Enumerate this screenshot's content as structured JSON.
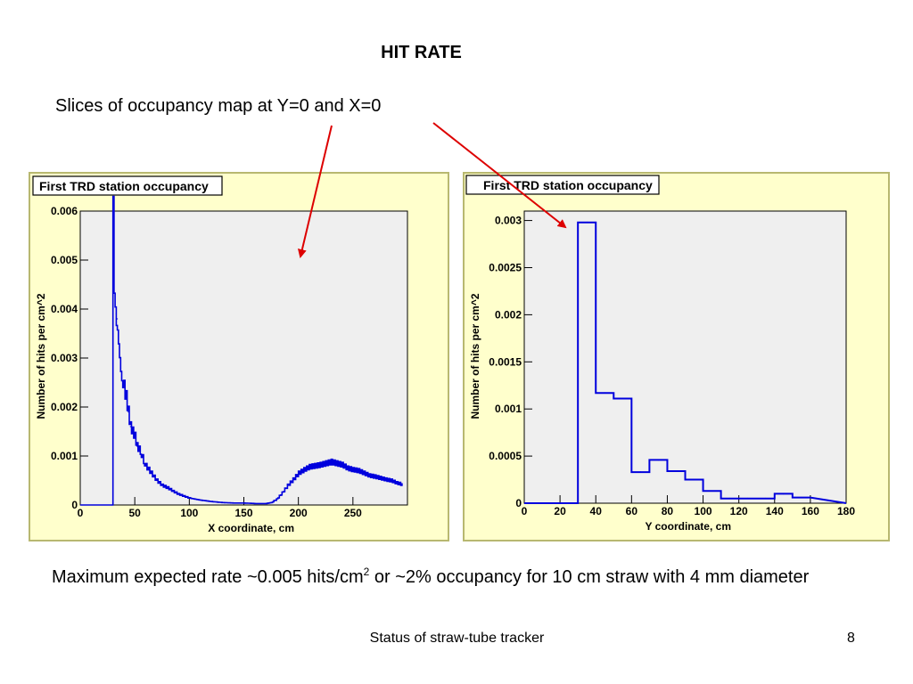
{
  "slide": {
    "title": "HIT RATE",
    "subtitle": "Slices of occupancy map at Y=0 and X=0",
    "caption_part1": "Maximum expected rate ~0.005 hits/cm",
    "caption_sup": "2",
    "caption_part2": " or ~2% occupancy for 10 cm straw with 4 mm diameter",
    "footer": "Status of straw-tube tracker",
    "page_number": "8"
  },
  "colors": {
    "frame_bg": "#ffffcc",
    "frame_border": "#b8b870",
    "plot_bg": "#efefef",
    "series": "#0000dd",
    "arrow": "#dd0000"
  },
  "chart_data": [
    {
      "type": "line",
      "histogram": true,
      "title": "First TRD station occupancy",
      "xlabel": "X coordinate, cm",
      "ylabel": "Number of hits per cm^2",
      "xlim": [
        0,
        300
      ],
      "ylim": [
        0,
        0.006
      ],
      "xticks": [
        0,
        50,
        100,
        150,
        200,
        250
      ],
      "yticks": [
        0,
        0.001,
        0.002,
        0.003,
        0.004,
        0.005,
        0.006
      ],
      "ytick_labels": [
        "0",
        "0.001",
        "0.002",
        "0.003",
        "0.004",
        "0.005",
        "0.006"
      ],
      "grid": false,
      "x": [
        0,
        29,
        30,
        31,
        32,
        33,
        34,
        35,
        36,
        37,
        38,
        40,
        42,
        44,
        46,
        48,
        50,
        52,
        55,
        58,
        60,
        65,
        70,
        75,
        80,
        85,
        90,
        95,
        100,
        110,
        120,
        130,
        140,
        150,
        160,
        170,
        175,
        180,
        185,
        190,
        195,
        200,
        205,
        210,
        215,
        220,
        225,
        230,
        235,
        240,
        245,
        250,
        255,
        260,
        265,
        270,
        275,
        280,
        285,
        290,
        295
      ],
      "y": [
        0,
        0,
        0.0063,
        0.0046,
        0.0043,
        0.0039,
        0.0038,
        0.0035,
        0.0032,
        0.0029,
        0.0027,
        0.0024,
        0.0022,
        0.0019,
        0.0016,
        0.0015,
        0.0014,
        0.0012,
        0.0011,
        0.0009,
        0.0008,
        0.00065,
        0.0005,
        0.0004,
        0.00035,
        0.00028,
        0.00022,
        0.00018,
        0.00014,
        0.0001,
        7e-05,
        5e-05,
        4e-05,
        4e-05,
        3e-05,
        3e-05,
        5e-05,
        0.00012,
        0.00025,
        0.0004,
        0.00052,
        0.00065,
        0.00072,
        0.00078,
        0.0008,
        0.00082,
        0.00085,
        0.00088,
        0.00085,
        0.00082,
        0.00075,
        0.00072,
        0.0007,
        0.00065,
        0.0006,
        0.00058,
        0.00055,
        0.00052,
        0.0005,
        0.00045,
        0.00042
      ]
    },
    {
      "type": "line",
      "histogram": true,
      "title": "First TRD station occupancy",
      "xlabel": "Y coordinate, cm",
      "ylabel": "Number of hits per cm^2",
      "xlim": [
        0,
        180
      ],
      "ylim": [
        0,
        0.0031
      ],
      "xticks": [
        0,
        20,
        40,
        60,
        80,
        100,
        120,
        140,
        160,
        180
      ],
      "yticks": [
        0,
        0.0005,
        0.001,
        0.0015,
        0.002,
        0.0025,
        0.003
      ],
      "ytick_labels": [
        "0",
        "0.0005",
        "0.001",
        "0.0015",
        "0.002",
        "0.0025",
        "0.003"
      ],
      "grid": false,
      "bin_edges": [
        0,
        30,
        40,
        50,
        60,
        70,
        80,
        90,
        100,
        110,
        120,
        130,
        140,
        150,
        160
      ],
      "values": [
        0,
        0.00298,
        0.00117,
        0.00111,
        0.00033,
        0.00046,
        0.00034,
        0.00025,
        0.00013,
        5e-05,
        5e-05,
        5e-05,
        0.0001,
        6e-05
      ]
    }
  ]
}
